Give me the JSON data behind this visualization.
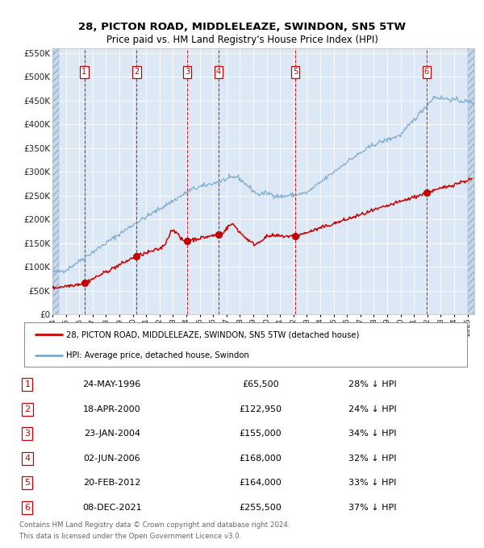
{
  "title_line1": "28, PICTON ROAD, MIDDLELEAZE, SWINDON, SN5 5TW",
  "title_line2": "Price paid vs. HM Land Registry's House Price Index (HPI)",
  "ylim": [
    0,
    560000
  ],
  "xlim_start": 1994.0,
  "xlim_end": 2025.5,
  "yticks": [
    0,
    50000,
    100000,
    150000,
    200000,
    250000,
    300000,
    350000,
    400000,
    450000,
    500000,
    550000
  ],
  "ytick_labels": [
    "£0",
    "£50K",
    "£100K",
    "£150K",
    "£200K",
    "£250K",
    "£300K",
    "£350K",
    "£400K",
    "£450K",
    "£500K",
    "£550K"
  ],
  "xtick_years": [
    1994,
    1995,
    1996,
    1997,
    1998,
    1999,
    2000,
    2001,
    2002,
    2003,
    2004,
    2005,
    2006,
    2007,
    2008,
    2009,
    2010,
    2011,
    2012,
    2013,
    2014,
    2015,
    2016,
    2017,
    2018,
    2019,
    2020,
    2021,
    2022,
    2023,
    2024,
    2025
  ],
  "bg_color": "#dce8f5",
  "hpi_color": "#7aaad0",
  "price_color": "#cc0000",
  "vline_color": "#cc0000",
  "transactions": [
    {
      "num": 1,
      "date_label": "24-MAY-1996",
      "date_x": 1996.38,
      "price": 65500
    },
    {
      "num": 2,
      "date_label": "18-APR-2000",
      "date_x": 2000.29,
      "price": 122950
    },
    {
      "num": 3,
      "date_label": "23-JAN-2004",
      "date_x": 2004.06,
      "price": 155000
    },
    {
      "num": 4,
      "date_label": "02-JUN-2006",
      "date_x": 2006.41,
      "price": 168000
    },
    {
      "num": 5,
      "date_label": "20-FEB-2012",
      "date_x": 2012.13,
      "price": 164000
    },
    {
      "num": 6,
      "date_label": "08-DEC-2021",
      "date_x": 2021.93,
      "price": 255500
    }
  ],
  "legend_label1": "28, PICTON ROAD, MIDDLELEAZE, SWINDON, SN5 5TW (detached house)",
  "legend_label2": "HPI: Average price, detached house, Swindon",
  "footer_line1": "Contains HM Land Registry data © Crown copyright and database right 2024.",
  "footer_line2": "This data is licensed under the Open Government Licence v3.0.",
  "table_rows": [
    {
      "num": 1,
      "date": "24-MAY-1996",
      "price": "£65,500",
      "pct": "28% ↓ HPI"
    },
    {
      "num": 2,
      "date": "18-APR-2000",
      "price": "£122,950",
      "pct": "24% ↓ HPI"
    },
    {
      "num": 3,
      "date": "23-JAN-2004",
      "price": "£155,000",
      "pct": "34% ↓ HPI"
    },
    {
      "num": 4,
      "date": "02-JUN-2006",
      "price": "£168,000",
      "pct": "32% ↓ HPI"
    },
    {
      "num": 5,
      "date": "20-FEB-2012",
      "price": "£164,000",
      "pct": "33% ↓ HPI"
    },
    {
      "num": 6,
      "date": "08-DEC-2021",
      "price": "£255,500",
      "pct": "37% ↓ HPI"
    }
  ]
}
